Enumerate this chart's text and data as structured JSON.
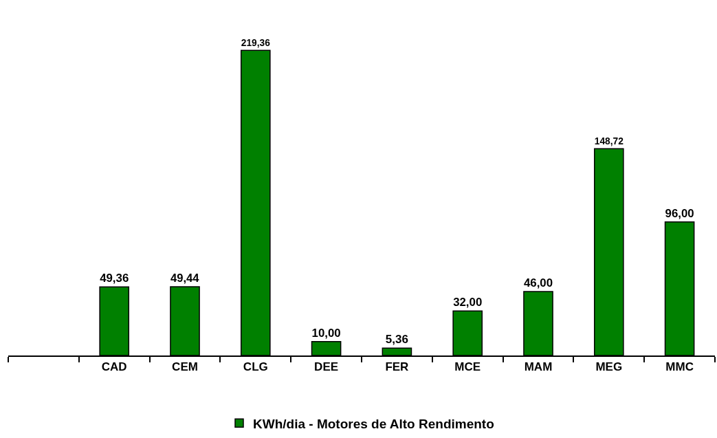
{
  "chart_data": {
    "type": "bar",
    "categories": [
      null,
      "CAD",
      "CEM",
      "CLG",
      "DEE",
      "FER",
      "MCE",
      "MAM",
      "MEG",
      "MMC"
    ],
    "series": [
      {
        "name": "KWh/dia - Motores de Alto Rendimento",
        "color": "#008000",
        "values": [
          null,
          49.36,
          49.44,
          219.36,
          10.0,
          5.36,
          32.0,
          46.0,
          148.72,
          96.0
        ],
        "value_labels": [
          null,
          "49,36",
          "49,44",
          "219,36",
          "10,00",
          "5,36",
          "32,00",
          "46,00",
          "148,72",
          "96,00"
        ]
      }
    ],
    "legend": "bottom",
    "grid": false
  }
}
